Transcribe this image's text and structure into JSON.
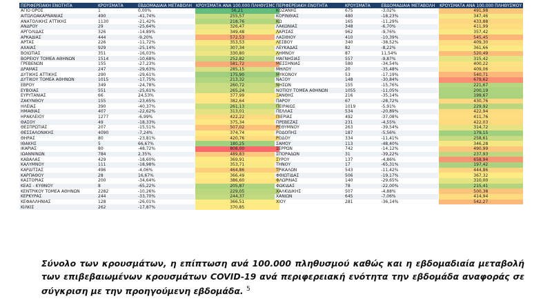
{
  "headers": [
    "ΠΕΡΙΦΕΡΕΙΑΚΗ ΕΝΟΤΗΤΑ",
    "ΚΡΟΥΣΜΑΤΑ",
    "ΕΒΔΟΜΑΔΙΑΙΑ ΜΕΤΑΒΟΛΗ",
    "ΚΡΟΥΣΜΑΤΑ ΑΝΑ 100.000 ΠΛΗΘΥΣΜΟΥ"
  ],
  "colors": {
    "header_bg": "#1f3f6b",
    "low": "#63be7b",
    "mid": "#ffeb84",
    "high": "#f8696b"
  },
  "left_rows": [
    [
      "ΑΓΙΟ ΟΡΟΣ",
      "1",
      "0,00%",
      "56,21"
    ],
    [
      "ΑΙΤΩΛΟΑΚΑΡΝΑΝΙΑΣ",
      "490",
      "-41,74%",
      "255,57"
    ],
    [
      "ΑΝΑΤΟΛΙΚΗΣ ΑΤΤΙΚΗΣ",
      "1130",
      "-21,42%",
      "218,76"
    ],
    [
      "ΑΝΔΡΟΥ",
      "29",
      "-25,64%",
      "326,47"
    ],
    [
      "ΑΡΓΟΛΙΔΑΣ",
      "326",
      "-14,89%",
      "349,48"
    ],
    [
      "ΑΡΚΑΔΙΑΣ",
      "444",
      "-9,20%",
      "572,53"
    ],
    [
      "ΑΡΤΑΣ",
      "226",
      "-11,72%",
      "353,53"
    ],
    [
      "ΑΧΑΪΑΣ",
      "929",
      "-25,14%",
      "307,34"
    ],
    [
      "ΒΟΙΩΤΙΑΣ",
      "351",
      "-16,03%",
      "330,80"
    ],
    [
      "ΒΟΡΕΙΟΥ ΤΟΜΕΑ ΑΘΗΝΩΝ",
      "1514",
      "-10,68%",
      "252,82"
    ],
    [
      "ΓΡΕΒΕΝΩΝ",
      "155",
      "-27,23%",
      "581,72"
    ],
    [
      "ΔΡΑΜΑΣ",
      "247",
      "-29,63%",
      "285,15"
    ],
    [
      "ΔΥΤΙΚΗΣ ΑΤΤΙΚΗΣ",
      "290",
      "-29,61%",
      "175,90"
    ],
    [
      "ΔΥΤΙΚΟΥ ΤΟΜΕΑ ΑΘΗΝΩΝ",
      "1015",
      "-17,75%",
      "213,32"
    ],
    [
      "ΕΒΡΟΥ",
      "349",
      "-24,78%",
      "260,72"
    ],
    [
      "ΕΥΒΟΙΑΣ",
      "551",
      "-25,61%",
      "265,24"
    ],
    [
      "ΕΥΡΥΤΑΝΙΑΣ",
      "66",
      "24,53%",
      "377,99"
    ],
    [
      "ΖΑΚΥΝΘΟΥ",
      "155",
      "-23,65%",
      "382,64"
    ],
    [
      "ΗΛΕΙΑΣ",
      "390",
      "-40,37%",
      "261,13"
    ],
    [
      "ΗΜΑΘΙΑΣ",
      "407",
      "-22,62%",
      "313,01"
    ],
    [
      "ΗΡΑΚΛΕΙΟΥ",
      "1277",
      "-6,99%",
      "422,22"
    ],
    [
      "ΘΑΣΟΥ",
      "49",
      "-18,33%",
      "375,34"
    ],
    [
      "ΘΕΣΠΡΩΤΙΑΣ",
      "207",
      "-15,51%",
      "507,02"
    ],
    [
      "ΘΕΣΣΑΛΟΝΙΚΗΣ",
      "4090",
      "-7,24%",
      "374,74"
    ],
    [
      "ΘΗΡΑΣ",
      "80",
      "-23,81%",
      "420,76"
    ],
    [
      "ΙΘΑΚΗΣ",
      "5",
      "66,67%",
      "180,25"
    ],
    [
      "ΙΚΑΡΙΑΣ",
      "80",
      "-48,72%",
      "808,00"
    ],
    [
      "ΙΩΑΝΝΙΝΩΝ",
      "784",
      "2,35%",
      "489,83"
    ],
    [
      "ΚΑΒΑΛΑΣ",
      "429",
      "-18,60%",
      "369,91"
    ],
    [
      "ΚΑΛΥΜΝΟΥ",
      "111",
      "-18,98%",
      "353,71"
    ],
    [
      "ΚΑΡΔΙΤΣΑΣ",
      "496",
      "-4,06%",
      "464,86"
    ],
    [
      "ΚΑΡΠΑΘΟΥ",
      "28",
      "16,67%",
      "366,49"
    ],
    [
      "ΚΑΣΤΟΡΙΑΣ",
      "200",
      "-34,64%",
      "386,60"
    ],
    [
      "ΚΕΑΣ - ΚΥΘΝΟΥ",
      "8",
      "-65,22%",
      "205,87"
    ],
    [
      "ΚΕΝΤΡΙΚΟΥ ΤΟΜΕΑ ΑΘΗΝΩΝ",
      "2282",
      "-10,26%",
      "229,05"
    ],
    [
      "ΚΕΡΚΥΡΑΣ",
      "244",
      "-33,70%",
      "244,37"
    ],
    [
      "ΚΕΦΑΛΛΗΝΙΑΣ",
      "128",
      "-26,01%",
      "366,51"
    ],
    [
      "ΚΙΛΚΙΣ",
      "262",
      "-17,87%",
      "370,85"
    ]
  ],
  "right_rows": [
    [
      "ΚΟΖΑΝΗΣ",
      "675",
      "-3,02%",
      "491,98"
    ],
    [
      "ΚΟΡΙΝΘΙΑΣ",
      "480",
      "-18,23%",
      "347,46"
    ],
    [
      "ΚΩ",
      "165",
      "-11,29%",
      "433,88"
    ],
    [
      "ΛΑΚΩΝΙΑΣ",
      "348",
      "-6,70%",
      "411,99"
    ],
    [
      "ΛΑΡΙΣΑΣ",
      "962",
      "-9,76%",
      "357,42"
    ],
    [
      "ΛΑΣΙΘΙΟΥ",
      "410",
      "-10,39%",
      "545,45"
    ],
    [
      "ΛΕΣΒΟΥ",
      "340",
      "-38,52%",
      "409,30"
    ],
    [
      "ΛΕΥΚΑΔΑΣ",
      "82",
      "-8,22%",
      "361,66"
    ],
    [
      "ΛΗΜΝΟΥ",
      "87",
      "11,54%",
      "520,49"
    ],
    [
      "ΜΑΓΝΗΣΙΑΣ",
      "557",
      "-9,87%",
      "315,42"
    ],
    [
      "ΜΕΣΣΗΝΙΑΣ",
      "580",
      "-34,54%",
      "400,22"
    ],
    [
      "ΜΗΛΟΥ",
      "20",
      "-35,48%",
      "409,06"
    ],
    [
      "ΜΥΚΟΝΟΥ",
      "53",
      "-17,19%",
      "540,71"
    ],
    [
      "ΝΑΞΟΥ",
      "148",
      "-30,84%",
      "679,62"
    ],
    [
      "ΝΗΣΩΝ",
      "155",
      "-15,76%",
      "221,67"
    ],
    [
      "ΝΟΤΙΟΥ ΤΟΜΕΑ ΑΘΗΝΩΝ",
      "1055",
      "-11,05%",
      "200,19"
    ],
    [
      "ΞΑΝΘΗΣ",
      "216",
      "-35,14%",
      "199,67"
    ],
    [
      "ΠΑΡΟΥ",
      "67",
      "-28,72%",
      "430,76"
    ],
    [
      "ΠΕΙΡΑΙΩΣ",
      "1019",
      "-5,91%",
      "229,92"
    ],
    [
      "ΠΕΛΛΑΣ",
      "534",
      "-20,89%",
      "422,94"
    ],
    [
      "ΠΙΕΡΙΑΣ",
      "492",
      "-37,08%",
      "411,76"
    ],
    [
      "ΠΡΕΒΕΖΑΣ",
      "231",
      "-4,55%",
      "422,03"
    ],
    [
      "ΡΕΘΥΜΝΟΥ",
      "263",
      "-39,54%",
      "314,72"
    ],
    [
      "ΡΟΔΟΠΗΣ",
      "187",
      "-5,56%",
      "179,15"
    ],
    [
      "ΡΟΔΟΥ",
      "334",
      "-11,41%",
      "258,61"
    ],
    [
      "ΣΑΜΟΥ",
      "113",
      "-48,40%",
      "346,28"
    ],
    [
      "ΣΕΡΡΩΝ",
      "742",
      "-14,12%",
      "490,99"
    ],
    [
      "ΣΠΟΡΑΔΩΝ",
      "31",
      "-39,22%",
      "237,93"
    ],
    [
      "ΣΥΡΟΥ",
      "137",
      "-4,86%",
      "658,94"
    ],
    [
      "ΤΗΝΟΥ",
      "17",
      "-65,31%",
      "197,42"
    ],
    [
      "ΤΡΙΚΑΛΩΝ",
      "543",
      "-11,42%",
      "444,86"
    ],
    [
      "ΦΘΙΩΤΙΔΑΣ",
      "506",
      "-19,17%",
      "367,32"
    ],
    [
      "ΦΛΩΡΙΝΑΣ",
      "140",
      "-29,65%",
      "310,00"
    ],
    [
      "ΦΩΚΙΔΑΣ",
      "78",
      "-22,00%",
      "215,41"
    ],
    [
      "ΧΑΛΚΙΔΙΚΗΣ",
      "507",
      "-4,88%",
      "500,38"
    ],
    [
      "ΧΑΝΙΩΝ",
      "645",
      "-7,06%",
      "414,94"
    ],
    [
      "ΧΙΟΥ",
      "281",
      "-36,14%",
      "542,27"
    ]
  ],
  "caption": "Σύνολο των κρουσμάτων, η επίπτωση ανά 100.000 πληθυσμού καθώς και η εβδομαδιαία μεταβολή των επιβεβαιωμένων κρουσμάτων COVID-19 ανά περιφερειακή ενότητα την εβδομάδα αναφοράς σε σύγκριση με την προηγούμενη εβδομάδα.",
  "footnote": "5"
}
